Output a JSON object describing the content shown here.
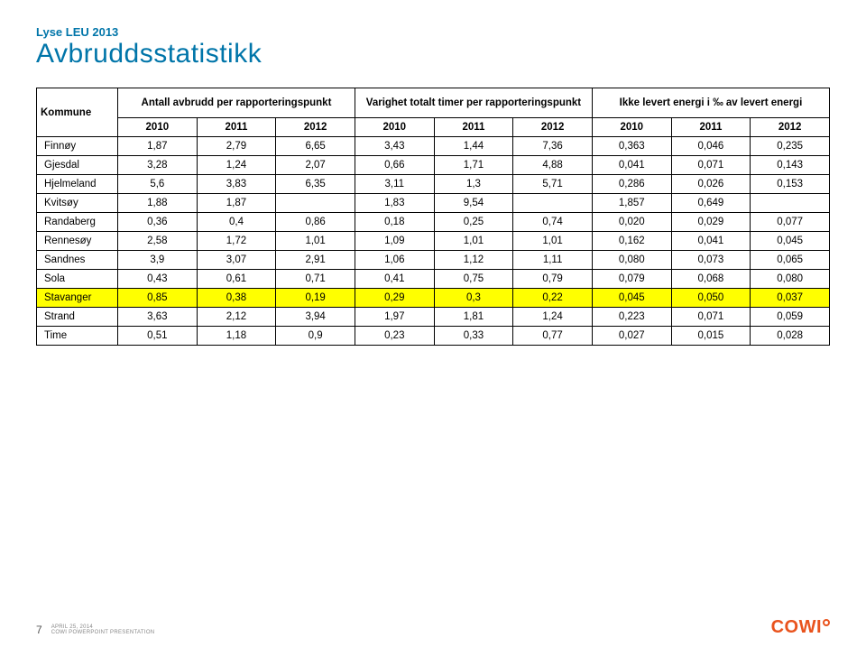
{
  "pretitle": "Lyse LEU 2013",
  "title": "Avbruddsstatistikk",
  "group_headers": [
    "Kommune",
    "Antall avbrudd per rapporteringspunkt",
    "Varighet totalt timer per rapporteringspunkt",
    "Ikke levert energi i ‰ av levert energi"
  ],
  "year_headers": [
    "2010",
    "2011",
    "2012",
    "2010",
    "2011",
    "2012",
    "2010",
    "2011",
    "2012"
  ],
  "rows": [
    {
      "name": "Finnøy",
      "highlight": false,
      "cells": [
        "1,87",
        "2,79",
        "6,65",
        "3,43",
        "1,44",
        "7,36",
        "0,363",
        "0,046",
        "0,235"
      ]
    },
    {
      "name": "Gjesdal",
      "highlight": false,
      "cells": [
        "3,28",
        "1,24",
        "2,07",
        "0,66",
        "1,71",
        "4,88",
        "0,041",
        "0,071",
        "0,143"
      ]
    },
    {
      "name": "Hjelmeland",
      "highlight": false,
      "cells": [
        "5,6",
        "3,83",
        "6,35",
        "3,11",
        "1,3",
        "5,71",
        "0,286",
        "0,026",
        "0,153"
      ]
    },
    {
      "name": "Kvitsøy",
      "highlight": false,
      "cells": [
        "1,88",
        "1,87",
        "",
        "1,83",
        "9,54",
        "",
        "1,857",
        "0,649",
        ""
      ]
    },
    {
      "name": "Randaberg",
      "highlight": false,
      "cells": [
        "0,36",
        "0,4",
        "0,86",
        "0,18",
        "0,25",
        "0,74",
        "0,020",
        "0,029",
        "0,077"
      ]
    },
    {
      "name": "Rennesøy",
      "highlight": false,
      "cells": [
        "2,58",
        "1,72",
        "1,01",
        "1,09",
        "1,01",
        "1,01",
        "0,162",
        "0,041",
        "0,045"
      ]
    },
    {
      "name": "Sandnes",
      "highlight": false,
      "cells": [
        "3,9",
        "3,07",
        "2,91",
        "1,06",
        "1,12",
        "1,11",
        "0,080",
        "0,073",
        "0,065"
      ]
    },
    {
      "name": "Sola",
      "highlight": false,
      "cells": [
        "0,43",
        "0,61",
        "0,71",
        "0,41",
        "0,75",
        "0,79",
        "0,079",
        "0,068",
        "0,080"
      ]
    },
    {
      "name": "Stavanger",
      "highlight": true,
      "cells": [
        "0,85",
        "0,38",
        "0,19",
        "0,29",
        "0,3",
        "0,22",
        "0,045",
        "0,050",
        "0,037"
      ]
    },
    {
      "name": "Strand",
      "highlight": false,
      "cells": [
        "3,63",
        "2,12",
        "3,94",
        "1,97",
        "1,81",
        "1,24",
        "0,223",
        "0,071",
        "0,059"
      ]
    },
    {
      "name": "Time",
      "highlight": false,
      "cells": [
        "0,51",
        "1,18",
        "0,9",
        "0,23",
        "0,33",
        "0,77",
        "0,027",
        "0,015",
        "0,028"
      ]
    }
  ],
  "footer": {
    "page_num": "7",
    "date": "APRIL 25, 2014",
    "source": "COWI POWERPOINT PRESENTATION"
  },
  "logo_text": "COWI"
}
